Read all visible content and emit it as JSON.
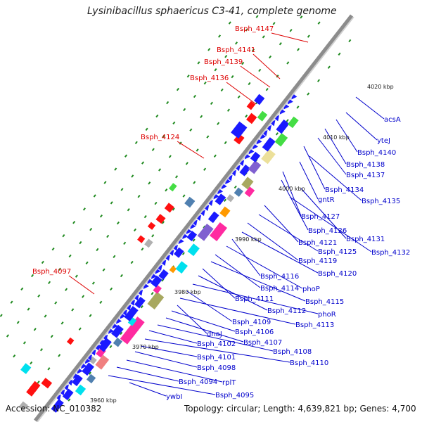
{
  "title": "Lysinibacillus sphaericus C3-41, complete genome",
  "footer": {
    "accession": "Accession: NC_010382",
    "summary": "Topology: circular; Length: 4,639,821 bp; Genes: 4,700"
  },
  "colors": {
    "backbone": "#8c8c8c",
    "gene_blue": "#1a1aff",
    "label_blue": "#0000cc",
    "label_red": "#dd0000",
    "tick_green": "#1f8a1f",
    "red_gene": "#ff1010",
    "cyan": "#00e0ee",
    "magenta": "#ff2aa0",
    "pink": "#f08080",
    "purple": "#8060d0",
    "olive": "#a8a860",
    "orange": "#ff9900",
    "steel": "#5080b0",
    "lime": "#44dd44",
    "khaki": "#ece09a",
    "gray": "#b0b0b0"
  },
  "scale_labels": [
    "3960 kbp",
    "3970 kbp",
    "3980 kbp",
    "3990 kbp",
    "4000 kbp",
    "4010 kbp",
    "4020 kbp"
  ],
  "red_labels": [
    "Bsph_4147",
    "Bsph_4141",
    "Bsph_4139",
    "Bsph_4136",
    "Bsph_4124",
    "Bsph_4097"
  ],
  "blue_labels": [
    "acsA",
    "yteJ",
    "Bsph_4140",
    "Bsph_4138",
    "Bsph_4137",
    "Bsph_4134",
    "Bsph_4135",
    "gntR",
    "Bsph_4127",
    "Bsph_4126",
    "Bsph_4131",
    "Bsph_4132",
    "Bsph_4121",
    "Bsph_4125",
    "Bsph_4119",
    "Bsph_4120",
    "Bsph_4116",
    "phoP",
    "Bsph_4114",
    "Bsph_4115",
    "Bsph_4111",
    "Bsph_4112",
    "phoR",
    "Bsph_4109",
    "Bsph_4113",
    "dnaJ",
    "Bsph_4106",
    "Bsph_4107",
    "Bsph_4108",
    "Bsph_4102",
    "Bsph_4110",
    "Bsph_4101",
    "Bsph_4098",
    "rplT",
    "Bsph_4094",
    "Bsph_4095",
    "ywbI"
  ]
}
